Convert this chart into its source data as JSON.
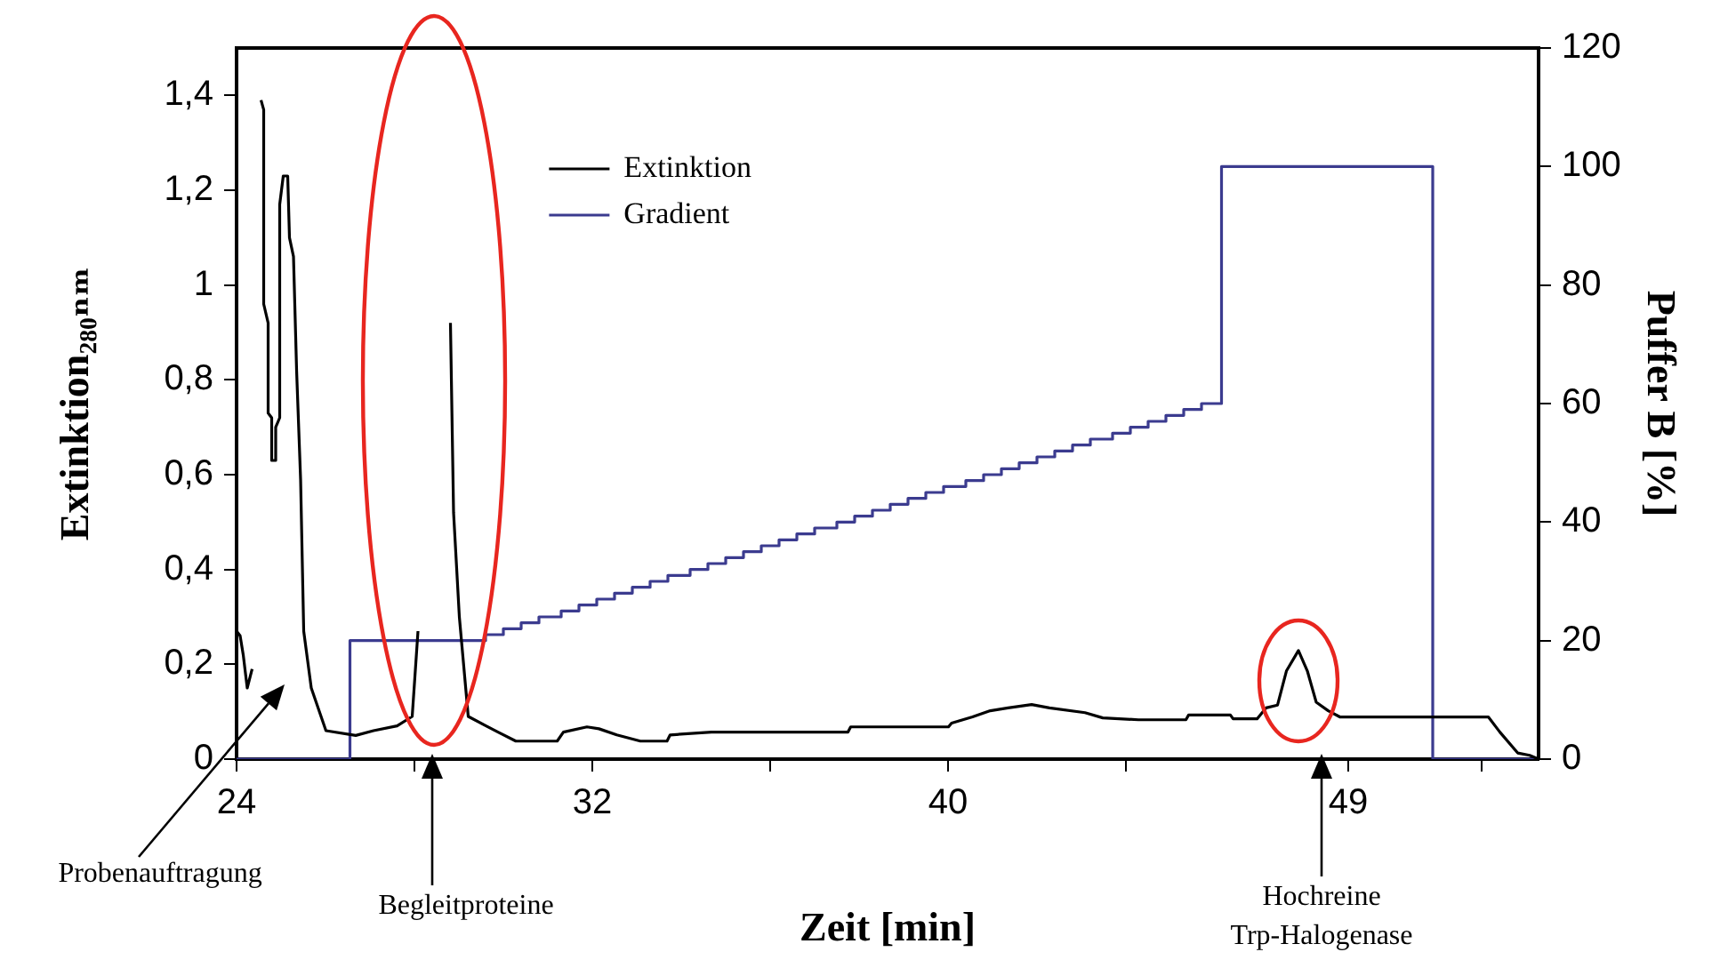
{
  "chart_data": {
    "type": "line",
    "xlabel": "Zeit [min]",
    "ylabel": "Extinktion₂₈₀ₙₘ",
    "y2label": "Puffer B [%]",
    "xlim": [
      24,
      53.28
    ],
    "xticks": [
      24,
      {
        "value": 28,
        "label": null
      },
      32,
      {
        "value": 36,
        "label": null
      },
      40,
      {
        "value": 44,
        "label": null
      },
      49,
      {
        "value": 52,
        "label": null
      }
    ],
    "ylim": [
      0,
      1.5
    ],
    "yticks": [
      0,
      {
        "value": 0.2,
        "label": "0,2"
      },
      {
        "value": 0.4,
        "label": "0,4"
      },
      {
        "value": 0.6,
        "label": "0,6"
      },
      {
        "value": 0.8,
        "label": "0,8"
      },
      1,
      {
        "value": 1.2,
        "label": "1,2"
      },
      {
        "value": 1.4,
        "label": "1,4"
      }
    ],
    "y2lim": [
      0,
      120
    ],
    "y2ticks": [
      0,
      20,
      40,
      60,
      80,
      100,
      120
    ],
    "legend": "top left",
    "marker": "none",
    "line_style": "solid",
    "series": [
      {
        "name": "Extinktion",
        "type": "line",
        "color": "#000000",
        "x": [
          24,
          24.08,
          24.15,
          24.24,
          24.35,
          24.39,
          24.48,
          24.55,
          24.61,
          24.61,
          24.71,
          24.71,
          24.79,
          24.79,
          24.88,
          24.88,
          24.97,
          24.97,
          25.05,
          25.15,
          25.19,
          25.28,
          25.35,
          25.44,
          25.51,
          25.68,
          26.01,
          26.68,
          27.08,
          27.61,
          27.95,
          28.08,
          28.15,
          28.75,
          28.81,
          28.88,
          29.01,
          29.21,
          29.61,
          29.88,
          30.28,
          31.21,
          31.35,
          31.88,
          32.15,
          32.55,
          33.08,
          33.68,
          33.75,
          34.68,
          37.75,
          37.81,
          40.01,
          40.08,
          40.55,
          40.95,
          41.35,
          41.88,
          42.28,
          43.08,
          43.48,
          44.28,
          45.35,
          45.41,
          46.35,
          46.41,
          46.95,
          47.15,
          47.41,
          47.61,
          47.88,
          48.08,
          48.28,
          48.55,
          48.81,
          52.15,
          52.41,
          52.81,
          53.08,
          53.28
        ],
        "values": [
          0.27,
          0.26,
          0.22,
          0.15,
          0.19,
          null,
          null,
          1.39,
          1.37,
          0.96,
          0.92,
          0.73,
          0.72,
          0.63,
          0.63,
          0.7,
          0.72,
          1.17,
          1.23,
          1.23,
          1.1,
          1.06,
          0.82,
          0.59,
          0.27,
          0.15,
          0.06,
          0.05,
          0.06,
          0.07,
          0.09,
          0.27,
          null,
          null,
          0.92,
          0.52,
          0.3,
          0.09,
          0.07,
          0.057,
          0.038,
          0.038,
          0.057,
          0.068,
          0.064,
          0.051,
          0.038,
          0.038,
          0.051,
          0.057,
          0.057,
          0.068,
          0.068,
          0.076,
          0.089,
          0.102,
          0.108,
          0.115,
          0.108,
          0.098,
          0.087,
          0.083,
          0.083,
          0.093,
          0.093,
          0.085,
          0.085,
          0.108,
          0.114,
          0.186,
          0.229,
          0.186,
          0.12,
          0.102,
          0.089,
          0.089,
          0.057,
          0.013,
          0.008,
          0
        ]
      },
      {
        "name": "Gradient",
        "type": "step",
        "axis": "y2",
        "color": "#3b3b8f",
        "x": [
          24,
          26.55,
          29.6,
          30.0,
          30.4,
          30.8,
          31.3,
          31.7,
          32.1,
          32.5,
          32.9,
          33.3,
          33.7,
          34.2,
          34.6,
          35.0,
          35.4,
          35.8,
          36.2,
          36.6,
          37.0,
          37.5,
          37.9,
          38.3,
          38.7,
          39.1,
          39.5,
          39.9,
          40.4,
          40.8,
          41.2,
          41.6,
          42.0,
          42.4,
          42.8,
          43.2,
          43.7,
          44.1,
          44.5,
          44.9,
          45.3,
          45.7,
          46.15,
          50.9,
          53.28
        ],
        "values": [
          0,
          20,
          21,
          22,
          23,
          24,
          25,
          26,
          27,
          28,
          29,
          30,
          31,
          32,
          33,
          34,
          35,
          36,
          37,
          38,
          39,
          40,
          41,
          42,
          43,
          44,
          45,
          46,
          47,
          48,
          49,
          50,
          51,
          52,
          53,
          54,
          55,
          56,
          57,
          58,
          59,
          60,
          100,
          0,
          0
        ]
      }
    ],
    "annotations": [
      "Probenauftragung",
      "Begleitproteine",
      "Hochreine Trp-Halogenase"
    ]
  }
}
